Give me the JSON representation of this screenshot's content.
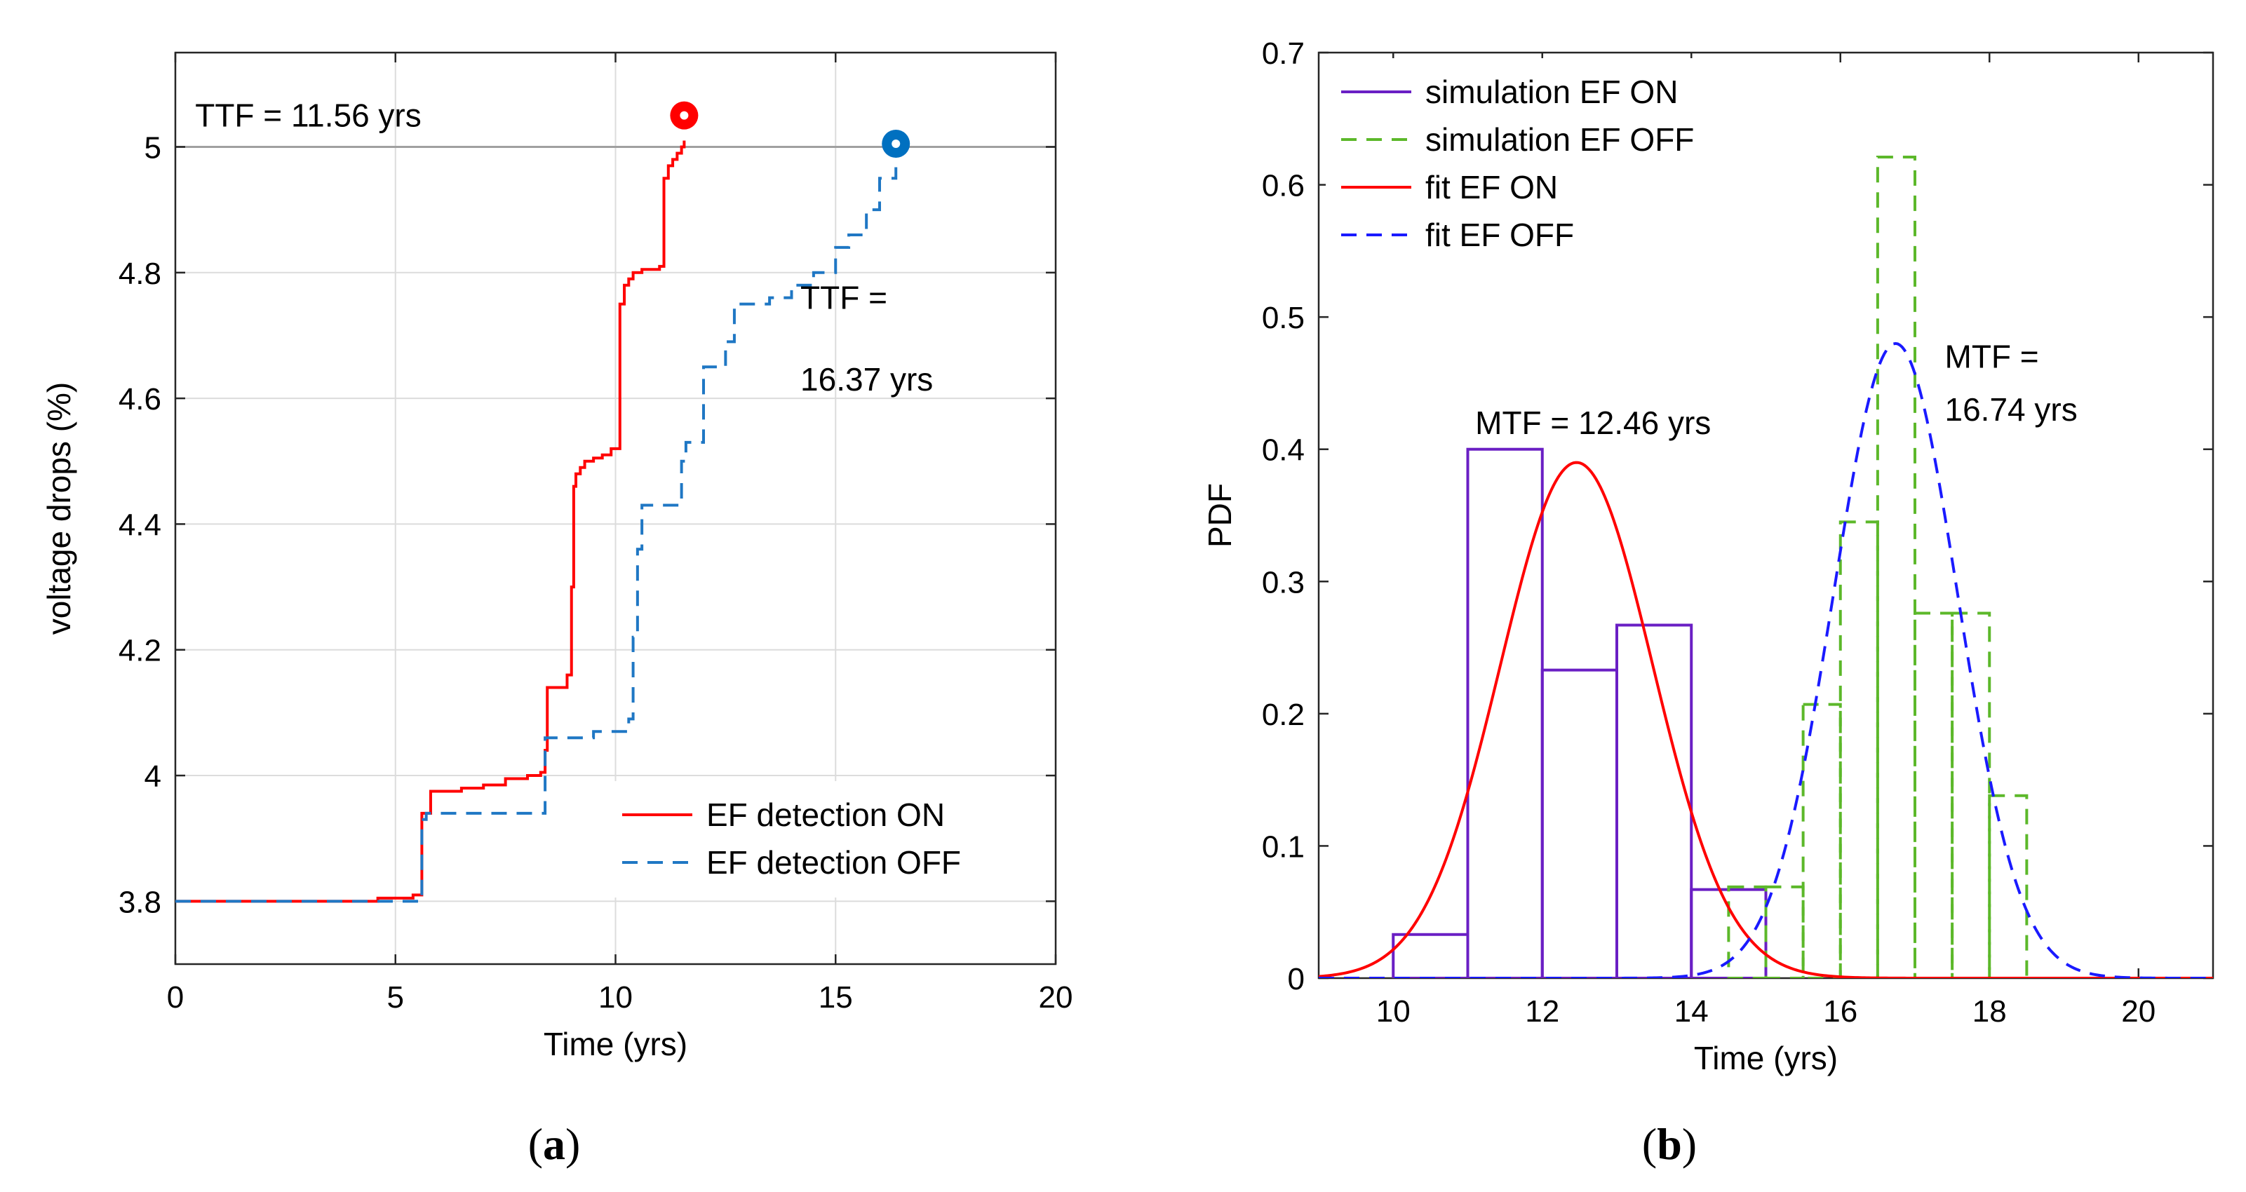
{
  "chart_data": [
    {
      "panel": "(a)",
      "type": "line",
      "xlabel": "Time (yrs)",
      "ylabel": "voltage drops (%)",
      "xlim": [
        0,
        20
      ],
      "ylim": [
        3.7,
        5.15
      ],
      "xticks": [
        0,
        5,
        10,
        15,
        20
      ],
      "yticks": [
        3.8,
        4.0,
        4.2,
        4.4,
        4.6,
        4.8,
        5.0
      ],
      "ytick_labels": [
        "3.8",
        "4",
        "4.2",
        "4.4",
        "4.6",
        "4.8",
        "5"
      ],
      "grid": true,
      "legend": "lower-right",
      "threshold": 5.0,
      "series": [
        {
          "name": "EF detection ON",
          "color": "#ff0000",
          "style": "solid",
          "step": true,
          "x": [
            0,
            4.6,
            5.4,
            5.5,
            5.6,
            5.8,
            6.5,
            7.0,
            7.5,
            8.0,
            8.3,
            8.4,
            8.45,
            8.9,
            9.0,
            9.05,
            9.1,
            9.2,
            9.3,
            9.5,
            9.7,
            9.9,
            10.1,
            10.2,
            10.3,
            10.4,
            10.5,
            10.6,
            11.0,
            11.1,
            11.2,
            11.3,
            11.4,
            11.5,
            11.56
          ],
          "y": [
            3.8,
            3.805,
            3.81,
            3.81,
            3.94,
            3.975,
            3.98,
            3.985,
            3.995,
            4.0,
            4.005,
            4.04,
            4.14,
            4.16,
            4.3,
            4.46,
            4.48,
            4.49,
            4.5,
            4.505,
            4.51,
            4.52,
            4.75,
            4.78,
            4.79,
            4.8,
            4.8,
            4.805,
            4.81,
            4.95,
            4.97,
            4.98,
            4.99,
            5.0,
            5.01
          ]
        },
        {
          "name": "EF detection OFF",
          "color": "#1f77c4",
          "style": "dashed",
          "step": true,
          "x": [
            0,
            5.6,
            5.7,
            8.4,
            8.5,
            9.5,
            10.3,
            10.4,
            10.5,
            10.6,
            11.0,
            11.5,
            11.6,
            12.0,
            12.5,
            12.7,
            13.5,
            14.0,
            14.5,
            15.0,
            15.3,
            15.7,
            16.0,
            16.37
          ],
          "y": [
            3.8,
            3.93,
            3.94,
            4.06,
            4.06,
            4.07,
            4.09,
            4.22,
            4.36,
            4.43,
            4.43,
            4.5,
            4.53,
            4.65,
            4.69,
            4.75,
            4.76,
            4.78,
            4.8,
            4.84,
            4.86,
            4.9,
            4.95,
            5.0
          ]
        }
      ],
      "points": [
        {
          "x": 11.56,
          "y": 5.05,
          "color": "#ff0000"
        },
        {
          "x": 16.37,
          "y": 5.005,
          "color": "#0070c0"
        }
      ],
      "annotations": [
        {
          "text": "TTF = 11.56 yrs",
          "x": 0.45,
          "y": 5.05
        },
        {
          "text": "TTF =",
          "x": 14.2,
          "y": 4.76
        },
        {
          "text": "16.37 yrs",
          "x": 14.2,
          "y": 4.63
        }
      ]
    },
    {
      "panel": "(b)",
      "type": "bar",
      "xlabel": "Time (yrs)",
      "ylabel": "PDF",
      "xlim": [
        9,
        21
      ],
      "ylim": [
        0,
        0.7
      ],
      "xticks": [
        10,
        12,
        14,
        16,
        18,
        20
      ],
      "yticks": [
        0,
        0.1,
        0.2,
        0.3,
        0.4,
        0.5,
        0.6,
        0.7
      ],
      "ytick_labels": [
        "0",
        "0.1",
        "0.2",
        "0.3",
        "0.4",
        "0.5",
        "0.6",
        "0.7"
      ],
      "grid": false,
      "legend": "top-left",
      "series": [
        {
          "name": "simulation EF ON",
          "type": "histogram",
          "color": "#6a1fc4",
          "style": "solid",
          "bin_edges": [
            10,
            11,
            12,
            13,
            14,
            15
          ],
          "values": [
            0.033,
            0.4,
            0.233,
            0.267,
            0.067
          ]
        },
        {
          "name": "simulation EF OFF",
          "type": "histogram",
          "color": "#5cb82a",
          "style": "dashed",
          "bin_edges": [
            14.5,
            15.0,
            15.5,
            16.0,
            16.5,
            17.0,
            17.5,
            18.0,
            18.5
          ],
          "values": [
            0.069,
            0.069,
            0.207,
            0.345,
            0.621,
            0.276,
            0.276,
            0.138
          ]
        },
        {
          "name": "fit EF ON",
          "type": "normal-fit",
          "color": "#ff0000",
          "style": "solid",
          "mean": 12.46,
          "peak": 0.39
        },
        {
          "name": "fit EF OFF",
          "type": "normal-fit",
          "color": "#1a1aff",
          "style": "dashed",
          "mean": 16.74,
          "peak": 0.48
        }
      ],
      "annotations": [
        {
          "text": "MTF = 12.46 yrs",
          "x": 11.1,
          "y": 0.42
        },
        {
          "text": "MTF =",
          "x": 17.4,
          "y": 0.47
        },
        {
          "text": "16.74 yrs",
          "x": 17.4,
          "y": 0.43
        }
      ]
    }
  ],
  "captions": {
    "a": "a",
    "b": "b"
  }
}
